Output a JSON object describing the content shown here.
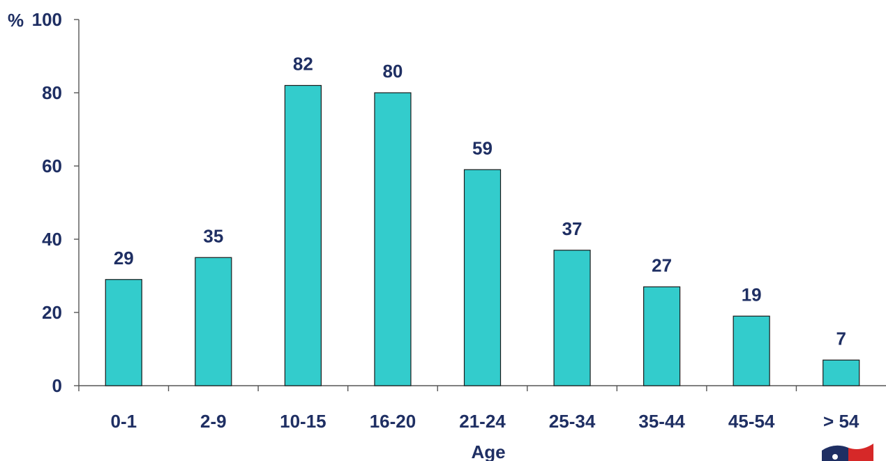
{
  "chart_data": {
    "type": "bar",
    "categories": [
      "0-1",
      "2-9",
      "10-15",
      "16-20",
      "21-24",
      "25-34",
      "35-44",
      "45-54",
      "> 54"
    ],
    "values": [
      29,
      35,
      82,
      80,
      59,
      37,
      27,
      19,
      7
    ],
    "data_labels": [
      "29",
      "35",
      "82",
      "80",
      "59",
      "37",
      "27",
      "19",
      "7"
    ],
    "xlabel": "Age",
    "ylabel": "%",
    "ylim": [
      0,
      100
    ],
    "yticks": [
      0,
      20,
      40,
      60,
      80,
      100
    ],
    "grid": false,
    "legend": "none",
    "bar_color": "#33cccc",
    "text_color": "#1f2f63"
  }
}
